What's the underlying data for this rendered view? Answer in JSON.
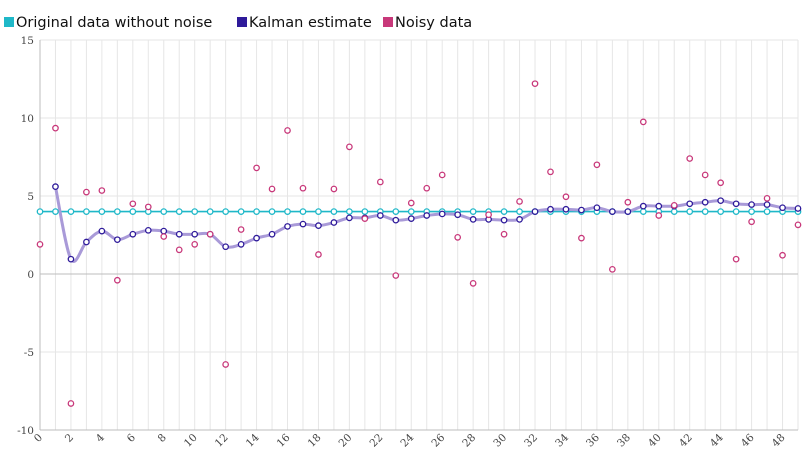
{
  "chart_data": {
    "type": "line",
    "legend": "top-left",
    "grid": true,
    "ylim": [
      -10,
      15
    ],
    "xlim": [
      0,
      49
    ],
    "yticks": [
      "15",
      "10",
      "5",
      "0",
      "-5",
      "-10"
    ],
    "xticks": [
      "0",
      "2",
      "4",
      "6",
      "8",
      "10",
      "12",
      "14",
      "16",
      "18",
      "20",
      "22",
      "24",
      "26",
      "28",
      "30",
      "32",
      "34",
      "36",
      "38",
      "40",
      "42",
      "44",
      "46",
      "48"
    ],
    "x": [
      0,
      1,
      2,
      3,
      4,
      5,
      6,
      7,
      8,
      9,
      10,
      11,
      12,
      13,
      14,
      15,
      16,
      17,
      18,
      19,
      20,
      21,
      22,
      23,
      24,
      25,
      26,
      27,
      28,
      29,
      30,
      31,
      32,
      33,
      34,
      35,
      36,
      37,
      38,
      39,
      40,
      41,
      42,
      43,
      44,
      45,
      46,
      47,
      48,
      49
    ],
    "series": [
      {
        "name": "Original data without noise",
        "color": "#1fb8c8",
        "style": "line-with-points",
        "values": [
          4,
          4,
          4,
          4,
          4,
          4,
          4,
          4,
          4,
          4,
          4,
          4,
          4,
          4,
          4,
          4,
          4,
          4,
          4,
          4,
          4,
          4,
          4,
          4,
          4,
          4,
          4,
          4,
          4,
          4,
          4,
          4,
          4,
          4,
          4,
          4,
          4,
          4,
          4,
          4,
          4,
          4,
          4,
          4,
          4,
          4,
          4,
          4,
          4,
          4
        ]
      },
      {
        "name": "Kalman estimate",
        "color": "#2e1a9a",
        "line_color": "#a99ad8",
        "style": "smooth-line-with-points",
        "values": [
          null,
          5.6,
          0.95,
          2.05,
          2.75,
          2.2,
          2.55,
          2.8,
          2.75,
          2.55,
          2.55,
          2.55,
          1.75,
          1.9,
          2.3,
          2.55,
          3.05,
          3.2,
          3.1,
          3.3,
          3.6,
          3.6,
          3.75,
          3.45,
          3.55,
          3.75,
          3.85,
          3.8,
          3.5,
          3.5,
          3.45,
          3.5,
          4.0,
          4.15,
          4.15,
          4.1,
          4.25,
          4.0,
          4.0,
          4.35,
          4.35,
          4.35,
          4.5,
          4.6,
          4.7,
          4.5,
          4.45,
          4.45,
          4.25,
          4.2
        ]
      },
      {
        "name": "Noisy data",
        "color": "#c8387a",
        "style": "points",
        "values": [
          1.9,
          9.35,
          -8.3,
          5.25,
          5.35,
          -0.4,
          4.5,
          4.3,
          2.4,
          1.55,
          1.9,
          2.55,
          -5.8,
          2.85,
          6.8,
          5.45,
          9.2,
          5.5,
          1.25,
          5.45,
          8.15,
          3.55,
          5.9,
          -0.1,
          4.55,
          5.5,
          6.35,
          2.35,
          -0.6,
          3.8,
          2.55,
          4.65,
          12.2,
          6.55,
          4.95,
          2.3,
          7.0,
          0.3,
          4.6,
          9.75,
          3.75,
          4.4,
          7.4,
          6.35,
          5.85,
          0.95,
          3.35,
          4.85,
          1.2,
          3.15
        ]
      }
    ]
  }
}
